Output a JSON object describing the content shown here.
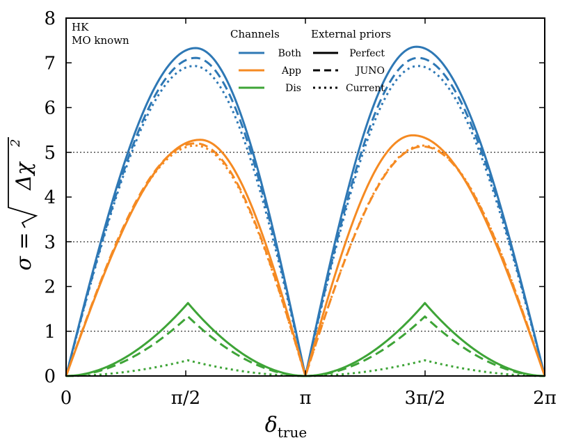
{
  "chart_data": {
    "type": "line",
    "xlabel": "δ_true",
    "xlabel_main": "δ",
    "xlabel_sub": "true",
    "ylabel": "σ = √Δχ²",
    "ylabel_lhs": "σ = ",
    "ylabel_rad": "Δχ",
    "ylabel_sup": "2",
    "xlim": [
      0,
      6.283185307
    ],
    "ylim": [
      0,
      8
    ],
    "x_ticks": [
      {
        "value": 0,
        "label": "0"
      },
      {
        "value": 1.570796327,
        "label": "π/2"
      },
      {
        "value": 3.141592654,
        "label": "π"
      },
      {
        "value": 4.71238898,
        "label": "3π/2"
      },
      {
        "value": 6.283185307,
        "label": "2π"
      }
    ],
    "y_ticks": [
      {
        "value": 0,
        "label": "0"
      },
      {
        "value": 1,
        "label": "1"
      },
      {
        "value": 2,
        "label": "2"
      },
      {
        "value": 3,
        "label": "3"
      },
      {
        "value": 4,
        "label": "4"
      },
      {
        "value": 5,
        "label": "5"
      },
      {
        "value": 6,
        "label": "6"
      },
      {
        "value": 7,
        "label": "7"
      },
      {
        "value": 8,
        "label": "8"
      }
    ],
    "hlines": [
      1,
      3,
      5
    ],
    "annotations": [
      "HK",
      "MO known"
    ],
    "legend_channels_title": "Channels",
    "legend_priors_title": "External priors",
    "legend_channels": [
      {
        "name": "Both",
        "color": "#2e78b5"
      },
      {
        "name": "App",
        "color": "#f58a22"
      },
      {
        "name": "Dis",
        "color": "#3ea437"
      }
    ],
    "legend_priors": [
      {
        "name": "Perfect",
        "style": "solid"
      },
      {
        "name": "JUNO",
        "style": "dashed"
      },
      {
        "name": "Current",
        "style": "dotted"
      }
    ],
    "series": [
      {
        "name": "Both – Perfect",
        "channel": "Both",
        "prior": "Perfect",
        "peak_x": [
          1.7,
          4.6
        ],
        "peak_y": [
          7.33,
          7.36
        ]
      },
      {
        "name": "Both – JUNO",
        "channel": "Both",
        "prior": "JUNO",
        "peak_x": [
          1.7,
          4.62
        ],
        "peak_y": [
          7.11,
          7.11
        ]
      },
      {
        "name": "Both – Current",
        "channel": "Both",
        "prior": "Current",
        "peak_x": [
          1.68,
          4.62
        ],
        "peak_y": [
          6.93,
          6.93
        ]
      },
      {
        "name": "App – Perfect",
        "channel": "App",
        "prior": "Perfect",
        "peak_x": [
          1.76,
          4.55
        ],
        "peak_y": [
          5.28,
          5.38
        ]
      },
      {
        "name": "App – JUNO",
        "channel": "App",
        "prior": "JUNO",
        "peak_x": [
          1.7,
          4.68
        ],
        "peak_y": [
          5.2,
          5.13
        ]
      },
      {
        "name": "App – Current",
        "channel": "App",
        "prior": "Current",
        "peak_x": [
          1.7,
          4.68
        ],
        "peak_y": [
          5.15,
          5.15
        ]
      },
      {
        "name": "Dis – Perfect",
        "channel": "Dis",
        "prior": "Perfect",
        "peak_x": [
          1.6,
          4.71
        ],
        "peak_y": [
          1.63,
          1.63
        ]
      },
      {
        "name": "Dis – JUNO",
        "channel": "Dis",
        "prior": "JUNO",
        "peak_x": [
          1.6,
          4.71
        ],
        "peak_y": [
          1.33,
          1.33
        ]
      },
      {
        "name": "Dis – Current",
        "channel": "Dis",
        "prior": "Current",
        "peak_x": [
          1.6,
          4.71
        ],
        "peak_y": [
          0.35,
          0.35
        ]
      }
    ]
  }
}
